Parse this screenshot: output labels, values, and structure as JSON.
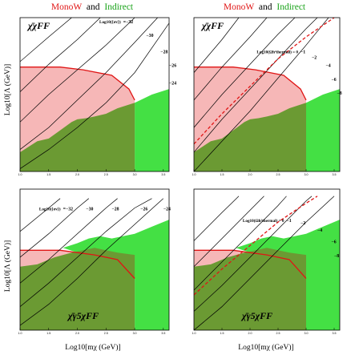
{
  "header": {
    "left": {
      "part1": "MonoW",
      "part2": "and",
      "part3": "Indirect"
    },
    "right": {
      "part1": "MonoW",
      "part2": "and",
      "part3": "Indirect"
    }
  },
  "axes": {
    "xlabel": "Log10[mχ (GeV)]",
    "ylabel": "Log10[Λ (GeV)]"
  },
  "chart_data": [
    {
      "type": "area",
      "panel": "top-left",
      "title": "χ̄χFF",
      "contour_title": "Log10(⟨σv⟩)",
      "contour_labels": [
        {
          "value": "=−32",
          "x": 2.8,
          "y": 3.7
        },
        {
          "value": "−30",
          "x": 3.2,
          "y": 3.45
        },
        {
          "value": "−28",
          "x": 3.45,
          "y": 3.15
        },
        {
          "value": "−26",
          "x": 3.6,
          "y": 2.9
        },
        {
          "value": "−24",
          "x": 3.6,
          "y": 2.58
        }
      ],
      "xlim": [
        1.0,
        3.6
      ],
      "ylim": [
        1.0,
        3.8
      ],
      "x_ticks": [
        "1.0",
        "1.5",
        "2.0",
        "2.5",
        "3.0",
        "3.5"
      ],
      "y_ticks": [],
      "regions": {
        "monow": [
          [
            1.0,
            1.0
          ],
          [
            1.0,
            2.9
          ],
          [
            1.7,
            2.9
          ],
          [
            2.1,
            2.85
          ],
          [
            2.6,
            2.75
          ],
          [
            2.9,
            2.5
          ],
          [
            3.0,
            2.3
          ],
          [
            3.0,
            1.0
          ]
        ],
        "indirect_overlap": [
          [
            1.0,
            1.0
          ],
          [
            1.0,
            1.35
          ],
          [
            1.3,
            1.55
          ],
          [
            1.5,
            1.6
          ],
          [
            1.7,
            1.75
          ],
          [
            1.9,
            1.9
          ],
          [
            2.0,
            1.95
          ],
          [
            2.15,
            1.97
          ],
          [
            2.3,
            2.0
          ],
          [
            2.5,
            2.05
          ],
          [
            2.7,
            2.15
          ],
          [
            3.0,
            2.25
          ],
          [
            3.0,
            1.0
          ]
        ],
        "indirect_only": [
          [
            3.0,
            1.0
          ],
          [
            3.0,
            2.25
          ],
          [
            3.3,
            2.4
          ],
          [
            3.6,
            2.5
          ],
          [
            3.6,
            1.0
          ]
        ]
      },
      "contours": [
        [
          [
            1.0,
            1.05
          ],
          [
            1.5,
            1.4
          ],
          [
            2.0,
            1.8
          ],
          [
            2.5,
            2.25
          ],
          [
            3.0,
            2.8
          ],
          [
            3.6,
            3.7
          ]
        ],
        [
          [
            1.0,
            1.4
          ],
          [
            1.5,
            1.8
          ],
          [
            2.0,
            2.3
          ],
          [
            2.5,
            2.8
          ],
          [
            3.0,
            3.35
          ],
          [
            3.4,
            3.8
          ]
        ],
        [
          [
            1.0,
            1.9
          ],
          [
            1.5,
            2.4
          ],
          [
            2.0,
            2.85
          ],
          [
            2.5,
            3.3
          ],
          [
            3.0,
            3.8
          ]
        ],
        [
          [
            1.0,
            2.45
          ],
          [
            1.5,
            2.95
          ],
          [
            2.0,
            3.4
          ],
          [
            2.4,
            3.8
          ]
        ],
        [
          [
            1.0,
            3.0
          ],
          [
            1.5,
            3.45
          ],
          [
            1.9,
            3.8
          ]
        ]
      ]
    },
    {
      "type": "area",
      "panel": "top-right",
      "title": "χ̄χFF",
      "contour_title": "Log10(Ωh²thermal) = 0",
      "contour_labels": [
        {
          "value": "−1",
          "x": 2.9,
          "y": 3.15
        },
        {
          "value": "−2",
          "x": 3.1,
          "y": 3.05
        },
        {
          "value": "−4",
          "x": 3.35,
          "y": 2.9
        },
        {
          "value": "−6",
          "x": 3.45,
          "y": 2.65
        },
        {
          "value": "−8",
          "x": 3.55,
          "y": 2.4
        }
      ],
      "xlim": [
        1.0,
        3.6
      ],
      "ylim": [
        1.0,
        3.8
      ],
      "x_ticks": [
        "1.0",
        "1.5",
        "2.0",
        "2.5",
        "3.0",
        "3.5"
      ],
      "y_ticks": [],
      "regions": {
        "monow": [
          [
            1.0,
            1.0
          ],
          [
            1.0,
            2.9
          ],
          [
            1.7,
            2.9
          ],
          [
            2.1,
            2.85
          ],
          [
            2.6,
            2.75
          ],
          [
            2.9,
            2.5
          ],
          [
            3.0,
            2.3
          ],
          [
            3.0,
            1.0
          ]
        ],
        "indirect_overlap": [
          [
            1.0,
            1.0
          ],
          [
            1.0,
            1.35
          ],
          [
            1.3,
            1.55
          ],
          [
            1.5,
            1.6
          ],
          [
            1.7,
            1.75
          ],
          [
            1.9,
            1.9
          ],
          [
            2.0,
            1.95
          ],
          [
            2.15,
            1.97
          ],
          [
            2.3,
            2.0
          ],
          [
            2.5,
            2.05
          ],
          [
            2.7,
            2.15
          ],
          [
            3.0,
            2.25
          ],
          [
            3.0,
            1.0
          ]
        ],
        "indirect_only": [
          [
            3.0,
            1.0
          ],
          [
            3.0,
            2.25
          ],
          [
            3.3,
            2.4
          ],
          [
            3.6,
            2.5
          ],
          [
            3.6,
            1.0
          ]
        ]
      },
      "contours": [
        [
          [
            1.0,
            1.0
          ],
          [
            1.5,
            1.55
          ],
          [
            2.0,
            2.1
          ],
          [
            2.5,
            2.7
          ],
          [
            3.0,
            3.3
          ],
          [
            3.4,
            3.8
          ]
        ],
        [
          [
            1.0,
            1.35
          ],
          [
            1.5,
            1.95
          ],
          [
            2.0,
            2.5
          ],
          [
            2.5,
            3.05
          ],
          [
            3.0,
            3.6
          ],
          [
            3.2,
            3.8
          ]
        ],
        [
          [
            1.0,
            1.8
          ],
          [
            1.5,
            2.4
          ],
          [
            2.0,
            2.95
          ],
          [
            2.5,
            3.5
          ],
          [
            2.8,
            3.8
          ]
        ],
        [
          [
            1.0,
            2.3
          ],
          [
            1.5,
            2.9
          ],
          [
            2.0,
            3.45
          ],
          [
            2.3,
            3.8
          ]
        ],
        [
          [
            1.0,
            2.8
          ],
          [
            1.5,
            3.4
          ],
          [
            1.8,
            3.8
          ]
        ]
      ],
      "thermal_line": [
        [
          1.0,
          1.5
        ],
        [
          1.5,
          2.05
        ],
        [
          2.0,
          2.55
        ],
        [
          2.5,
          3.05
        ],
        [
          3.0,
          3.45
        ],
        [
          3.5,
          3.8
        ]
      ]
    },
    {
      "type": "area",
      "panel": "bottom-left",
      "title": "χ̄γ5χFF",
      "contour_title": "Log10(⟨σv⟩)",
      "contour_labels": [
        {
          "value": "=−32",
          "x": 1.75,
          "y": 3.55
        },
        {
          "value": "−30",
          "x": 2.15,
          "y": 3.55
        },
        {
          "value": "−28",
          "x": 2.6,
          "y": 3.55
        },
        {
          "value": "−26",
          "x": 3.1,
          "y": 3.55
        },
        {
          "value": "−24",
          "x": 3.5,
          "y": 3.55
        }
      ],
      "xlim": [
        1.0,
        3.6
      ],
      "ylim": [
        1.0,
        4.0
      ],
      "x_ticks": [
        "1.0",
        "1.5",
        "2.0",
        "2.5",
        "3.0",
        "3.5"
      ],
      "y_ticks": [],
      "regions": {
        "monow": [
          [
            1.0,
            1.0
          ],
          [
            1.0,
            2.7
          ],
          [
            1.7,
            2.7
          ],
          [
            2.3,
            2.6
          ],
          [
            2.7,
            2.5
          ],
          [
            3.0,
            2.1
          ],
          [
            3.0,
            1.0
          ]
        ],
        "indirect_overlap": [
          [
            1.0,
            1.0
          ],
          [
            1.0,
            2.35
          ],
          [
            1.3,
            2.4
          ],
          [
            1.6,
            2.55
          ],
          [
            1.9,
            2.65
          ],
          [
            2.1,
            2.7
          ],
          [
            2.3,
            2.75
          ],
          [
            2.5,
            2.7
          ],
          [
            2.7,
            2.65
          ],
          [
            3.0,
            2.6
          ],
          [
            3.0,
            1.0
          ]
        ],
        "indirect_only": [
          [
            1.75,
            2.75
          ],
          [
            2.0,
            2.85
          ],
          [
            2.2,
            2.95
          ],
          [
            2.4,
            3.0
          ],
          [
            2.6,
            2.95
          ],
          [
            3.0,
            3.05
          ],
          [
            3.3,
            3.2
          ],
          [
            3.6,
            3.35
          ],
          [
            3.6,
            1.0
          ],
          [
            3.0,
            1.0
          ],
          [
            3.0,
            2.1
          ],
          [
            2.7,
            2.5
          ],
          [
            2.3,
            2.6
          ],
          [
            2.0,
            2.65
          ]
        ]
      },
      "contours": [
        [
          [
            1.0,
            1.1
          ],
          [
            1.5,
            1.55
          ],
          [
            2.0,
            2.1
          ],
          [
            2.5,
            2.7
          ],
          [
            3.0,
            3.25
          ],
          [
            3.5,
            3.8
          ]
        ],
        [
          [
            1.0,
            1.5
          ],
          [
            1.5,
            2.0
          ],
          [
            2.0,
            2.55
          ],
          [
            2.5,
            3.1
          ],
          [
            3.0,
            3.6
          ],
          [
            3.3,
            3.8
          ]
        ],
        [
          [
            1.0,
            2.0
          ],
          [
            1.5,
            2.5
          ],
          [
            2.0,
            3.05
          ],
          [
            2.5,
            3.6
          ],
          [
            2.7,
            3.8
          ]
        ],
        [
          [
            1.0,
            2.55
          ],
          [
            1.5,
            3.05
          ],
          [
            2.0,
            3.6
          ],
          [
            2.2,
            3.8
          ]
        ],
        [
          [
            1.0,
            3.1
          ],
          [
            1.5,
            3.6
          ],
          [
            1.7,
            3.8
          ]
        ]
      ]
    },
    {
      "type": "area",
      "panel": "bottom-right",
      "title": "χ̄γ5χFF",
      "contour_title": "Log10(Ωh²thermal) = 0",
      "contour_labels": [
        {
          "value": "−1",
          "x": 2.65,
          "y": 3.3
        },
        {
          "value": "−2",
          "x": 2.9,
          "y": 3.25
        },
        {
          "value": "−4",
          "x": 3.2,
          "y": 3.1
        },
        {
          "value": "−6",
          "x": 3.45,
          "y": 2.85
        },
        {
          "value": "−8",
          "x": 3.5,
          "y": 2.55
        }
      ],
      "xlim": [
        1.0,
        3.6
      ],
      "ylim": [
        1.0,
        4.0
      ],
      "x_ticks": [
        "1.0",
        "1.5",
        "2.0",
        "2.5",
        "3.0",
        "3.5"
      ],
      "y_ticks": [],
      "regions": {
        "monow": [
          [
            1.0,
            1.0
          ],
          [
            1.0,
            2.7
          ],
          [
            1.7,
            2.7
          ],
          [
            2.3,
            2.6
          ],
          [
            2.7,
            2.5
          ],
          [
            3.0,
            2.1
          ],
          [
            3.0,
            1.0
          ]
        ],
        "indirect_overlap": [
          [
            1.0,
            1.0
          ],
          [
            1.0,
            2.35
          ],
          [
            1.3,
            2.4
          ],
          [
            1.6,
            2.55
          ],
          [
            1.9,
            2.65
          ],
          [
            2.1,
            2.7
          ],
          [
            2.3,
            2.75
          ],
          [
            2.5,
            2.7
          ],
          [
            2.7,
            2.65
          ],
          [
            3.0,
            2.6
          ],
          [
            3.0,
            1.0
          ]
        ],
        "indirect_only": [
          [
            1.75,
            2.75
          ],
          [
            2.0,
            2.85
          ],
          [
            2.2,
            2.95
          ],
          [
            2.4,
            3.0
          ],
          [
            2.6,
            2.95
          ],
          [
            3.0,
            3.05
          ],
          [
            3.3,
            3.2
          ],
          [
            3.6,
            3.35
          ],
          [
            3.6,
            1.0
          ],
          [
            3.0,
            1.0
          ],
          [
            3.0,
            2.1
          ],
          [
            2.7,
            2.5
          ],
          [
            2.3,
            2.6
          ],
          [
            2.0,
            2.65
          ]
        ]
      },
      "contours": [
        [
          [
            1.0,
            1.0
          ],
          [
            1.5,
            1.5
          ],
          [
            2.0,
            2.1
          ],
          [
            2.5,
            2.7
          ],
          [
            3.0,
            3.3
          ],
          [
            3.5,
            3.85
          ]
        ],
        [
          [
            1.0,
            1.4
          ],
          [
            1.5,
            1.95
          ],
          [
            2.0,
            2.55
          ],
          [
            2.5,
            3.15
          ],
          [
            3.0,
            3.75
          ],
          [
            3.1,
            3.85
          ]
        ],
        [
          [
            1.0,
            1.85
          ],
          [
            1.5,
            2.45
          ],
          [
            2.0,
            3.05
          ],
          [
            2.5,
            3.65
          ],
          [
            2.65,
            3.85
          ]
        ],
        [
          [
            1.0,
            2.35
          ],
          [
            1.5,
            2.95
          ],
          [
            2.0,
            3.55
          ],
          [
            2.25,
            3.85
          ]
        ],
        [
          [
            1.0,
            2.9
          ],
          [
            1.5,
            3.5
          ],
          [
            1.8,
            3.85
          ]
        ]
      ],
      "thermal_line": [
        [
          1.0,
          1.75
        ],
        [
          1.5,
          2.3
        ],
        [
          2.0,
          2.8
        ],
        [
          2.5,
          3.3
        ],
        [
          3.0,
          3.7
        ],
        [
          3.2,
          3.85
        ]
      ]
    }
  ],
  "colors": {
    "monow_fill": "#f6b7b7",
    "monow_edge": "#e01515",
    "indirect_fill": "#44e044",
    "overlap_fill": "#6b9a33",
    "contour": "#000000",
    "thermal": "#e01515"
  }
}
